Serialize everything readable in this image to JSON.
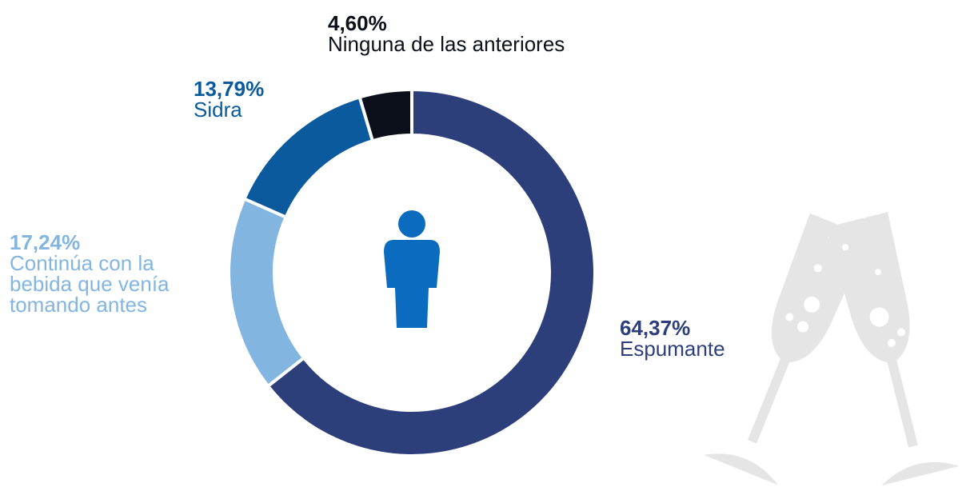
{
  "chart_data": {
    "type": "pie",
    "donut": true,
    "categories": [
      "Espumante",
      "Continúa con la bebida que venía tomando antes",
      "Sidra",
      "Ninguna de las anteriores"
    ],
    "values": [
      64.37,
      17.24,
      13.79,
      4.6
    ],
    "value_labels": [
      "64,37%",
      "17,24%",
      "13,79%",
      "4,60%"
    ],
    "colors": [
      "#2c3f7a",
      "#82b5df",
      "#0a5a9d",
      "#0b0f1a"
    ]
  }
}
